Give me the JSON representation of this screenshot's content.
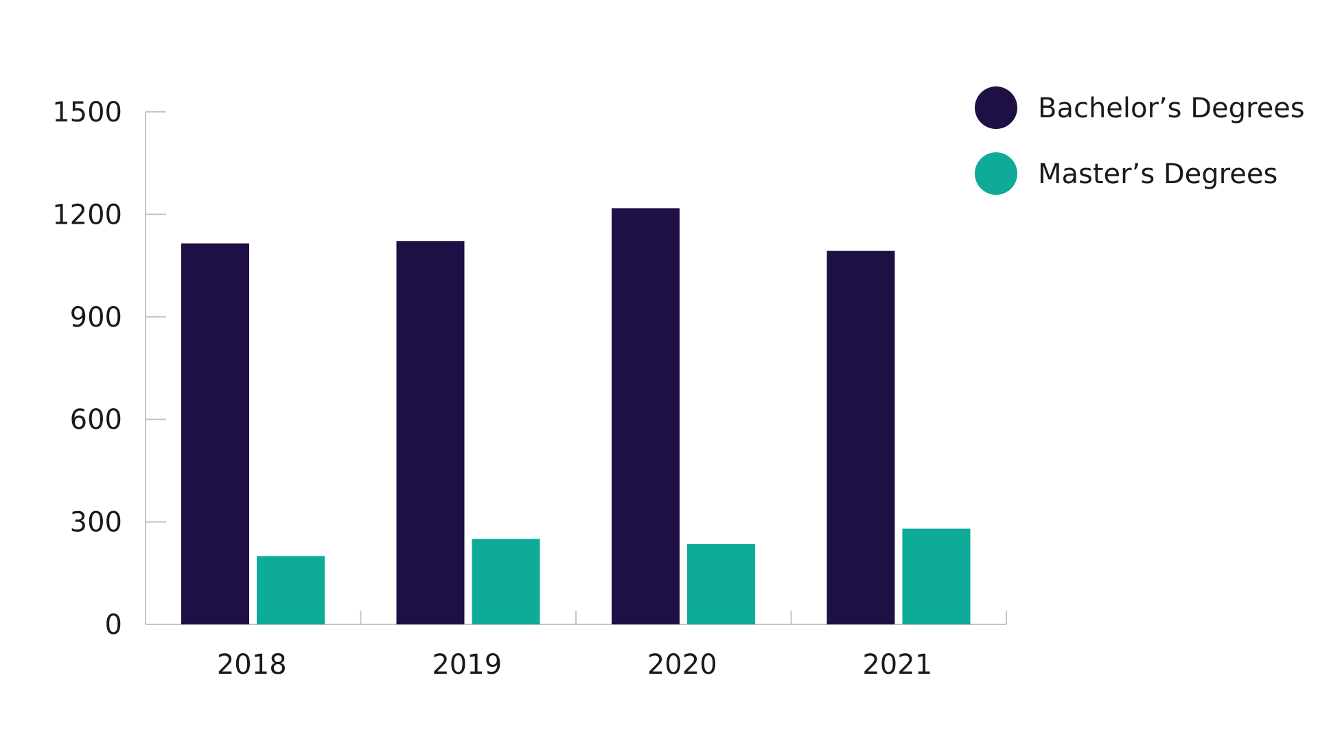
{
  "chart_data": {
    "type": "bar",
    "title": "",
    "xlabel": "",
    "ylabel": "",
    "categories": [
      "2018",
      "2019",
      "2020",
      "2021"
    ],
    "series": [
      {
        "name": "Bachelor’s Degrees",
        "color": "#1e0f45",
        "values": [
          1115,
          1122,
          1218,
          1093
        ]
      },
      {
        "name": "Master’s Degrees",
        "color": "#0eab98",
        "values": [
          200,
          250,
          235,
          280
        ]
      }
    ],
    "ylim": [
      0,
      1500
    ],
    "yticks": [
      "0",
      "300",
      "600",
      "900",
      "1200",
      "1500"
    ],
    "grid": false,
    "legend_position": "top-right",
    "axis_color": "#c4c4c4",
    "text_color": "#1a1a1a"
  }
}
